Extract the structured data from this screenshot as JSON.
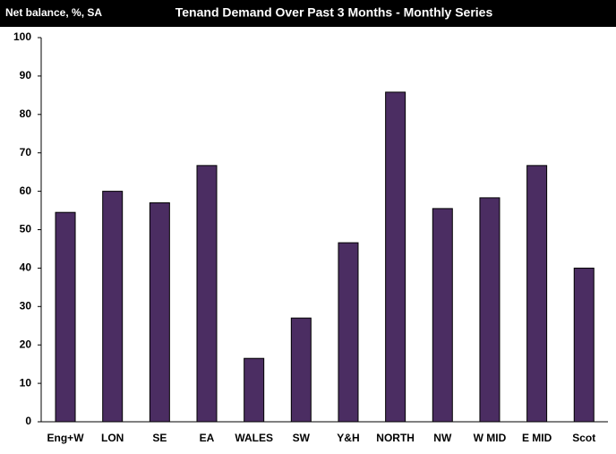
{
  "chart_data": {
    "type": "bar",
    "title": "Tenand Demand Over Past 3 Months - Monthly Series",
    "y_axis_label": "Net balance, %, SA",
    "categories": [
      "Eng+W",
      "LON",
      "SE",
      "EA",
      "WALES",
      "SW",
      "Y&H",
      "NORTH",
      "NW",
      "W MID",
      "E MID",
      "Scot"
    ],
    "values": [
      54.5,
      60,
      57,
      66.7,
      16.5,
      27,
      46.6,
      85.8,
      55.5,
      58.3,
      66.7,
      40
    ],
    "color": "#4b2d62",
    "ylim": [
      0,
      100
    ],
    "yticks": [
      0,
      10,
      20,
      30,
      40,
      50,
      60,
      70,
      80,
      90,
      100
    ],
    "grid": false
  }
}
